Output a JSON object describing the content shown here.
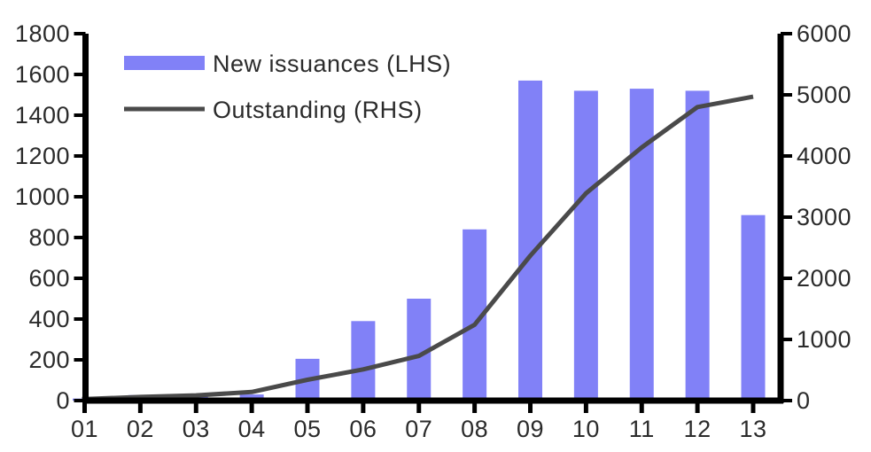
{
  "chart_data": {
    "type": "combo-bar-line",
    "title": "",
    "categories": [
      "01",
      "02",
      "03",
      "04",
      "05",
      "06",
      "07",
      "08",
      "09",
      "10",
      "11",
      "12",
      "13"
    ],
    "series": [
      {
        "name": "New issuances (LHS)",
        "type": "bar",
        "axis": "left",
        "color": "#8181f7",
        "values": [
          10,
          27,
          28,
          30,
          205,
          390,
          500,
          840,
          1570,
          1520,
          1530,
          1520,
          910
        ]
      },
      {
        "name": "Outstanding (RHS)",
        "type": "line",
        "axis": "right",
        "color": "#4a4a4a",
        "values": [
          25,
          60,
          85,
          140,
          340,
          510,
          730,
          1240,
          2370,
          3390,
          4140,
          4800,
          4970
        ]
      }
    ],
    "left_axis": {
      "min": 0,
      "max": 1800,
      "step": 200,
      "tick_labels": [
        "0",
        "200",
        "400",
        "600",
        "800",
        "1000",
        "1200",
        "1400",
        "1600",
        "1800"
      ]
    },
    "right_axis": {
      "min": 0,
      "max": 6000,
      "step": 1000,
      "tick_labels": [
        "0",
        "1000",
        "2000",
        "3000",
        "4000",
        "5000",
        "6000"
      ]
    },
    "grid": false,
    "legend_position": "top-left",
    "axis_color": "#000000",
    "text_color": "#2b2b2b"
  }
}
